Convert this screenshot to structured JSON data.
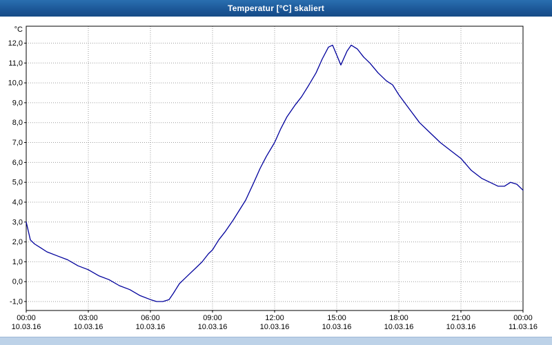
{
  "window": {
    "title": "Temperatur [°C] skaliert"
  },
  "colors": {
    "titlebar": "#1d5b9d",
    "line": "#00009c",
    "grid": "#9a9a9a",
    "axis": "#000000",
    "footer": "#bdd2e8"
  },
  "chart_data": {
    "type": "line",
    "title": "Temperatur [°C] skaliert",
    "xlabel": "",
    "ylabel": "°C",
    "grid": true,
    "legend": "none",
    "xlim": [
      0,
      24
    ],
    "ylim": [
      -1.45,
      12.85
    ],
    "x_tick_hours": [
      0,
      3,
      6,
      9,
      12,
      15,
      18,
      21,
      24
    ],
    "x_tick_times": [
      "00:00",
      "03:00",
      "06:00",
      "09:00",
      "12:00",
      "15:00",
      "18:00",
      "21:00",
      "00:00"
    ],
    "x_tick_dates": [
      "10.03.16",
      "10.03.16",
      "10.03.16",
      "10.03.16",
      "10.03.16",
      "10.03.16",
      "10.03.16",
      "10.03.16",
      "11.03.16"
    ],
    "y_tick_values": [
      12,
      11,
      10,
      9,
      8,
      7,
      6,
      5,
      4,
      3,
      2,
      1,
      0,
      -1
    ],
    "y_tick_labels": [
      "12,0",
      "11,0",
      "10,0",
      "9,0",
      "8,0",
      "7,0",
      "6,0",
      "5,0",
      "4,0",
      "3,0",
      "2,0",
      "1,0",
      "0,0",
      "-1,0"
    ],
    "series": [
      {
        "name": "Temperatur",
        "x": [
          0,
          0.2,
          0.4,
          0.7,
          1.0,
          1.5,
          2.0,
          2.5,
          3.0,
          3.5,
          4.0,
          4.5,
          5.0,
          5.5,
          6.0,
          6.3,
          6.6,
          6.9,
          7.1,
          7.4,
          7.6,
          7.9,
          8.2,
          8.5,
          8.8,
          9.0,
          9.3,
          9.6,
          10.0,
          10.3,
          10.6,
          11.0,
          11.3,
          11.6,
          12.0,
          12.3,
          12.6,
          13.0,
          13.3,
          13.6,
          14.0,
          14.3,
          14.6,
          14.8,
          15.0,
          15.2,
          15.5,
          15.7,
          16.0,
          16.3,
          16.6,
          17.0,
          17.4,
          17.7,
          18.0,
          18.5,
          19.0,
          19.5,
          20.0,
          20.5,
          21.0,
          21.5,
          22.0,
          22.4,
          22.8,
          23.1,
          23.4,
          23.7,
          24.0
        ],
        "y": [
          3.0,
          2.1,
          1.9,
          1.7,
          1.5,
          1.3,
          1.1,
          0.8,
          0.6,
          0.3,
          0.1,
          -0.2,
          -0.4,
          -0.7,
          -0.9,
          -1.0,
          -1.0,
          -0.9,
          -0.6,
          -0.1,
          0.1,
          0.4,
          0.7,
          1.0,
          1.4,
          1.6,
          2.1,
          2.5,
          3.1,
          3.6,
          4.1,
          5.0,
          5.7,
          6.3,
          7.0,
          7.7,
          8.3,
          8.9,
          9.3,
          9.8,
          10.5,
          11.2,
          11.8,
          11.9,
          11.4,
          10.9,
          11.6,
          11.9,
          11.7,
          11.3,
          11.0,
          10.5,
          10.1,
          9.9,
          9.4,
          8.7,
          8.0,
          7.5,
          7.0,
          6.6,
          6.2,
          5.6,
          5.2,
          5.0,
          4.8,
          4.8,
          5.0,
          4.9,
          4.6
        ]
      }
    ]
  }
}
